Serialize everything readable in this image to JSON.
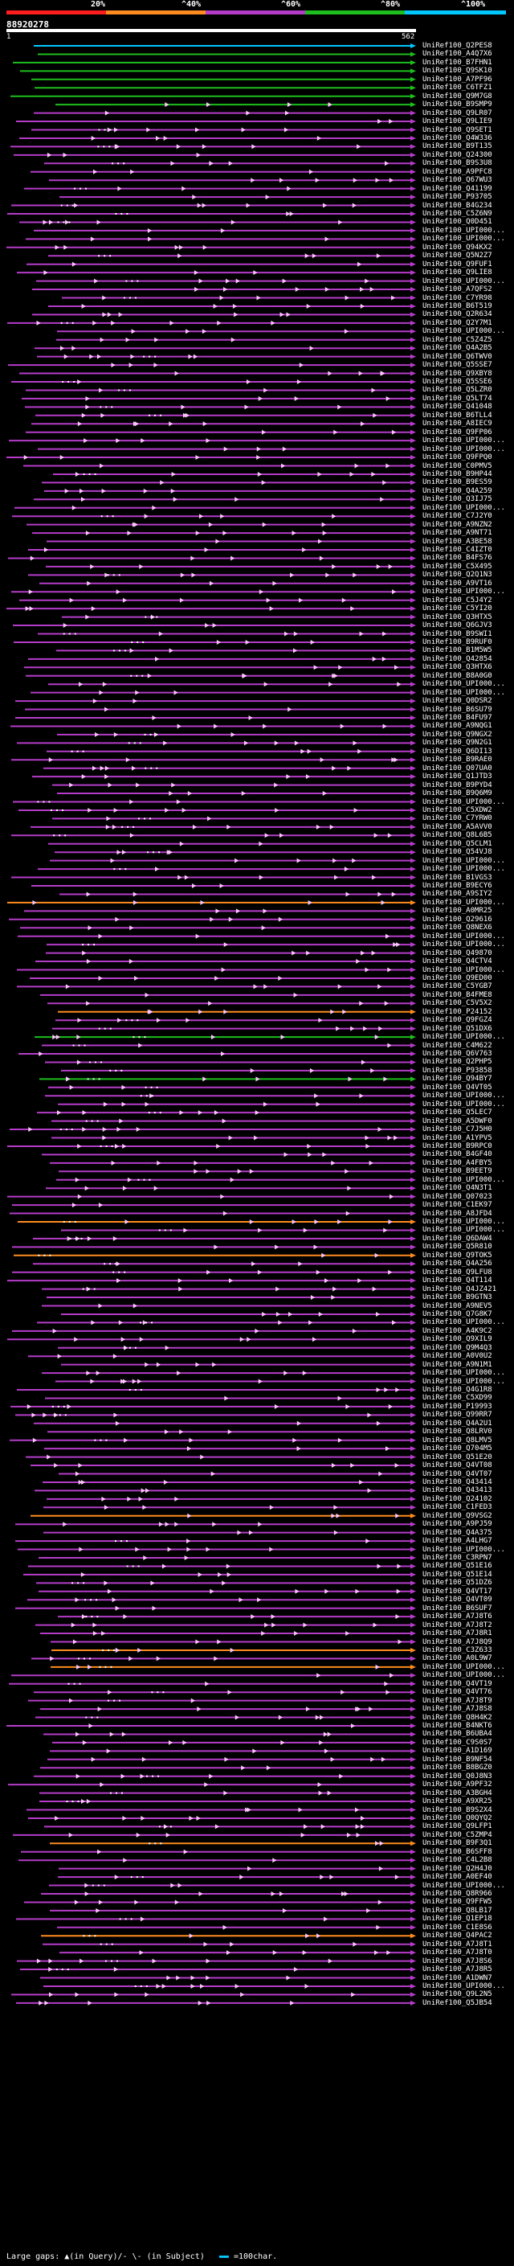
{
  "legend": {
    "labels": [
      "20%",
      "^40%",
      "^60%",
      "^80%",
      "^100%"
    ],
    "colors": [
      "#ff1e1e",
      "#ff8c1e",
      "#b43cc8",
      "#1ebe1e",
      "#00c8ff"
    ]
  },
  "query": {
    "id": "88920278",
    "start": "1",
    "end": "562"
  },
  "hits": [
    {
      "label": "UniRef100_Q2PES8",
      "color": "#00c8ff"
    },
    {
      "label": "UniRef100_A4Q7X6",
      "color": "#1ebe1e"
    },
    {
      "label": "UniRef100_B7FHN1",
      "color": "#1ebe1e"
    },
    {
      "label": "UniRef100_Q9SK10",
      "color": "#1ebe1e"
    },
    {
      "label": "UniRef100_A7PF96",
      "color": "#1ebe1e"
    },
    {
      "label": "UniRef100_C6TFZ1",
      "color": "#1ebe1e"
    },
    {
      "label": "UniRef100_Q9M7G8",
      "color": "#1ebe1e"
    },
    {
      "label": "UniRef100_B9SMP9",
      "color": "#1ebe1e"
    },
    {
      "label": "UniRef100_Q9LR07",
      "color": "#b43cc8"
    },
    {
      "label": "UniRef100_Q9LIE9",
      "color": "#b43cc8"
    },
    {
      "label": "UniRef100_Q9SET1",
      "color": "#b43cc8"
    },
    {
      "label": "UniRef100_Q4W336",
      "color": "#b43cc8"
    },
    {
      "label": "UniRef100_B9T135",
      "color": "#b43cc8"
    },
    {
      "label": "UniRef100_Q24300",
      "color": "#b43cc8"
    },
    {
      "label": "UniRef100_B9S3U8",
      "color": "#b43cc8"
    },
    {
      "label": "UniRef100_A9PFC8",
      "color": "#b43cc8"
    },
    {
      "label": "UniRef100_Q67WU3",
      "color": "#b43cc8"
    },
    {
      "label": "UniRef100_Q41199",
      "color": "#b43cc8"
    },
    {
      "label": "UniRef100_P93705",
      "color": "#b43cc8"
    },
    {
      "label": "UniRef100_B4G234",
      "color": "#b43cc8"
    },
    {
      "label": "UniRef100_C5Z6N9",
      "color": "#b43cc8"
    },
    {
      "label": "UniRef100_Q0D451",
      "color": "#b43cc8"
    },
    {
      "label": "UniRef100_UPI000...",
      "color": "#b43cc8"
    },
    {
      "label": "UniRef100_UPI000...",
      "color": "#b43cc8"
    },
    {
      "label": "UniRef100_Q94KX2",
      "color": "#b43cc8"
    },
    {
      "label": "UniRef100_Q5N2Z7",
      "color": "#b43cc8"
    },
    {
      "label": "UniRef100_Q9FUF1",
      "color": "#b43cc8"
    },
    {
      "label": "UniRef100_Q9LIE8",
      "color": "#b43cc8"
    },
    {
      "label": "UniRef100_UPI000...",
      "color": "#b43cc8"
    },
    {
      "label": "UniRef100_A7QFS2",
      "color": "#b43cc8"
    },
    {
      "label": "UniRef100_C7YR98",
      "color": "#b43cc8"
    },
    {
      "label": "UniRef100_B6T519",
      "color": "#b43cc8"
    },
    {
      "label": "UniRef100_Q2R634",
      "color": "#b43cc8"
    },
    {
      "label": "UniRef100_Q2Y7M1",
      "color": "#b43cc8"
    },
    {
      "label": "UniRef100_UPI000...",
      "color": "#b43cc8"
    },
    {
      "label": "UniRef100_C5Z4Z5",
      "color": "#b43cc8"
    },
    {
      "label": "UniRef100_Q4A2B5",
      "color": "#b43cc8"
    },
    {
      "label": "UniRef100_Q6TWV0",
      "color": "#b43cc8"
    },
    {
      "label": "UniRef100_Q5SSE7",
      "color": "#b43cc8"
    },
    {
      "label": "UniRef100_Q9XBY8",
      "color": "#b43cc8"
    },
    {
      "label": "UniRef100_Q5SSE6",
      "color": "#b43cc8"
    },
    {
      "label": "UniRef100_Q5LZR0",
      "color": "#b43cc8"
    },
    {
      "label": "UniRef100_Q5LT74",
      "color": "#b43cc8"
    },
    {
      "label": "UniRef100_Q41048",
      "color": "#b43cc8"
    },
    {
      "label": "UniRef100_B6TLL4",
      "color": "#b43cc8"
    },
    {
      "label": "UniRef100_A8IEC9",
      "color": "#b43cc8"
    },
    {
      "label": "UniRef100_Q9FP06",
      "color": "#b43cc8"
    },
    {
      "label": "UniRef100_UPI000...",
      "color": "#b43cc8"
    },
    {
      "label": "UniRef100_UPI000...",
      "color": "#b43cc8"
    },
    {
      "label": "UniRef100_Q9FPQ0",
      "color": "#b43cc8"
    },
    {
      "label": "UniRef100_C0PMV5",
      "color": "#b43cc8"
    },
    {
      "label": "UniRef100_B9HP44",
      "color": "#b43cc8"
    },
    {
      "label": "UniRef100_B9ES59",
      "color": "#b43cc8"
    },
    {
      "label": "UniRef100_Q4A259",
      "color": "#b43cc8"
    },
    {
      "label": "UniRef100_Q3IJ75",
      "color": "#b43cc8"
    },
    {
      "label": "UniRef100_UPI000...",
      "color": "#b43cc8"
    },
    {
      "label": "UniRef100_C7J2Y0",
      "color": "#b43cc8"
    },
    {
      "label": "UniRef100_A9NZN2",
      "color": "#b43cc8"
    },
    {
      "label": "UniRef100_A9NT71",
      "color": "#b43cc8"
    },
    {
      "label": "UniRef100_A3BE58",
      "color": "#b43cc8"
    },
    {
      "label": "UniRef100_C4IZT0",
      "color": "#b43cc8"
    },
    {
      "label": "UniRef100_B4FS76",
      "color": "#b43cc8"
    },
    {
      "label": "UniRef100_C5X495",
      "color": "#b43cc8"
    },
    {
      "label": "UniRef100_Q2Q1N3",
      "color": "#b43cc8"
    },
    {
      "label": "UniRef100_A9VT16",
      "color": "#b43cc8"
    },
    {
      "label": "UniRef100_UPI000...",
      "color": "#b43cc8"
    },
    {
      "label": "UniRef100_C5J4Y2",
      "color": "#b43cc8"
    },
    {
      "label": "UniRef100_C5YI20",
      "color": "#b43cc8"
    },
    {
      "label": "UniRef100_Q3HTX5",
      "color": "#b43cc8"
    },
    {
      "label": "UniRef100_Q6GJV3",
      "color": "#b43cc8"
    },
    {
      "label": "UniRef100_B9SWI1",
      "color": "#b43cc8"
    },
    {
      "label": "UniRef100_B9RUF0",
      "color": "#b43cc8"
    },
    {
      "label": "UniRef100_B1M5W5",
      "color": "#b43cc8"
    },
    {
      "label": "UniRef100_Q42854",
      "color": "#b43cc8"
    },
    {
      "label": "UniRef100_Q3HTX6",
      "color": "#b43cc8"
    },
    {
      "label": "UniRef100_B8A0G0",
      "color": "#b43cc8"
    },
    {
      "label": "UniRef100_UPI000...",
      "color": "#b43cc8"
    },
    {
      "label": "UniRef100_UPI000...",
      "color": "#b43cc8"
    },
    {
      "label": "UniRef100_Q0DSR2",
      "color": "#b43cc8"
    },
    {
      "label": "UniRef100_B6SU79",
      "color": "#b43cc8"
    },
    {
      "label": "UniRef100_B4FU97",
      "color": "#b43cc8"
    },
    {
      "label": "UniRef100_A9NQG1",
      "color": "#b43cc8"
    },
    {
      "label": "UniRef100_Q9NGX2",
      "color": "#b43cc8"
    },
    {
      "label": "UniRef100_Q9N2G1",
      "color": "#b43cc8"
    },
    {
      "label": "UniRef100_Q6DI13",
      "color": "#b43cc8"
    },
    {
      "label": "UniRef100_B9RAE0",
      "color": "#b43cc8"
    },
    {
      "label": "UniRef100_Q07UA0",
      "color": "#b43cc8"
    },
    {
      "label": "UniRef100_Q1JTD3",
      "color": "#b43cc8"
    },
    {
      "label": "UniRef100_B9PYD4",
      "color": "#b43cc8"
    },
    {
      "label": "UniRef100_B9Q6M9",
      "color": "#b43cc8"
    },
    {
      "label": "UniRef100_UPI000...",
      "color": "#b43cc8"
    },
    {
      "label": "UniRef100_C5XDW2",
      "color": "#b43cc8"
    },
    {
      "label": "UniRef100_C7YRW0",
      "color": "#b43cc8"
    },
    {
      "label": "UniRef100_A5AVV0",
      "color": "#b43cc8"
    },
    {
      "label": "UniRef100_Q8L6B5",
      "color": "#b43cc8"
    },
    {
      "label": "UniRef100_Q5CLM1",
      "color": "#b43cc8"
    },
    {
      "label": "UniRef100_Q54VJ8",
      "color": "#b43cc8"
    },
    {
      "label": "UniRef100_UPI000...",
      "color": "#b43cc8"
    },
    {
      "label": "UniRef100_UPI000...",
      "color": "#b43cc8"
    },
    {
      "label": "UniRef100_B1VGS3",
      "color": "#b43cc8"
    },
    {
      "label": "UniRef100_B9ECY6",
      "color": "#b43cc8"
    },
    {
      "label": "UniRef100_A9SIY2",
      "color": "#b43cc8"
    },
    {
      "label": "UniRef100_UPI000...",
      "color": "#ff8c1e"
    },
    {
      "label": "UniRef100_A0MR25",
      "color": "#b43cc8"
    },
    {
      "label": "UniRef100_Q29616",
      "color": "#b43cc8"
    },
    {
      "label": "UniRef100_Q8NEX6",
      "color": "#b43cc8"
    },
    {
      "label": "UniRef100_UPI000...",
      "color": "#b43cc8"
    },
    {
      "label": "UniRef100_UPI000...",
      "color": "#b43cc8"
    },
    {
      "label": "UniRef100_Q49870",
      "color": "#b43cc8"
    },
    {
      "label": "UniRef100_Q4CTV4",
      "color": "#b43cc8"
    },
    {
      "label": "UniRef100_UPI000...",
      "color": "#b43cc8"
    },
    {
      "label": "UniRef100_Q9ED00",
      "color": "#b43cc8"
    },
    {
      "label": "UniRef100_C5YGB7",
      "color": "#b43cc8"
    },
    {
      "label": "UniRef100_B4FME8",
      "color": "#b43cc8"
    },
    {
      "label": "UniRef100_C5V5X2",
      "color": "#b43cc8"
    },
    {
      "label": "UniRef100_P24152",
      "color": "#ff8c1e"
    },
    {
      "label": "UniRef100_Q9FGZ4",
      "color": "#b43cc8"
    },
    {
      "label": "UniRef100_Q51DX6",
      "color": "#b43cc8"
    },
    {
      "label": "UniRef100_UPI000...",
      "color": "#1ebe1e"
    },
    {
      "label": "UniRef100_C4M622",
      "color": "#b43cc8"
    },
    {
      "label": "UniRef100_Q6V763",
      "color": "#b43cc8"
    },
    {
      "label": "UniRef100_Q2PHP5",
      "color": "#b43cc8"
    },
    {
      "label": "UniRef100_P93858",
      "color": "#b43cc8"
    },
    {
      "label": "UniRef100_Q94BY7",
      "color": "#1ebe1e"
    },
    {
      "label": "UniRef100_Q4VT05",
      "color": "#b43cc8"
    },
    {
      "label": "UniRef100_UPI000...",
      "color": "#b43cc8"
    },
    {
      "label": "UniRef100_UPI000...",
      "color": "#b43cc8"
    },
    {
      "label": "UniRef100_Q5LEC7",
      "color": "#b43cc8"
    },
    {
      "label": "UniRef100_A5DWF0",
      "color": "#b43cc8"
    },
    {
      "label": "UniRef100_C7J5H0",
      "color": "#b43cc8"
    },
    {
      "label": "UniRef100_A1YPV5",
      "color": "#b43cc8"
    },
    {
      "label": "UniRef100_B9RPC0",
      "color": "#b43cc8"
    },
    {
      "label": "UniRef100_B4GF40",
      "color": "#b43cc8"
    },
    {
      "label": "UniRef100_A4FBY5",
      "color": "#b43cc8"
    },
    {
      "label": "UniRef100_B9EET9",
      "color": "#b43cc8"
    },
    {
      "label": "UniRef100_UPI000...",
      "color": "#b43cc8"
    },
    {
      "label": "UniRef100_Q4N3T1",
      "color": "#b43cc8"
    },
    {
      "label": "UniRef100_Q07023",
      "color": "#b43cc8"
    },
    {
      "label": "UniRef100_C1EK97",
      "color": "#b43cc8"
    },
    {
      "label": "UniRef100_A8JFD4",
      "color": "#b43cc8"
    },
    {
      "label": "UniRef100_UPI000...",
      "color": "#ff8c1e"
    },
    {
      "label": "UniRef100_UPI000...",
      "color": "#b43cc8"
    },
    {
      "label": "UniRef100_Q6DAW4",
      "color": "#b43cc8"
    },
    {
      "label": "UniRef100_Q5R810",
      "color": "#b43cc8"
    },
    {
      "label": "UniRef100_Q9TOK5",
      "color": "#ff8c1e"
    },
    {
      "label": "UniRef100_Q4A256",
      "color": "#b43cc8"
    },
    {
      "label": "UniRef100_Q9LFU8",
      "color": "#b43cc8"
    },
    {
      "label": "UniRef100_Q4T114",
      "color": "#b43cc8"
    },
    {
      "label": "UniRef100_Q4JZ421",
      "color": "#b43cc8"
    },
    {
      "label": "UniRef100_B9GTN3",
      "color": "#b43cc8"
    },
    {
      "label": "UniRef100_A9NEV5",
      "color": "#b43cc8"
    },
    {
      "label": "UniRef100_Q7G8K7",
      "color": "#b43cc8"
    },
    {
      "label": "UniRef100_UPI000...",
      "color": "#b43cc8"
    },
    {
      "label": "UniRef100_A4K9C2",
      "color": "#b43cc8"
    },
    {
      "label": "UniRef100_Q9XIL9",
      "color": "#b43cc8"
    },
    {
      "label": "UniRef100_Q9M4Q3",
      "color": "#b43cc8"
    },
    {
      "label": "UniRef100_A0V0U2",
      "color": "#b43cc8"
    },
    {
      "label": "UniRef100_A9N1M1",
      "color": "#b43cc8"
    },
    {
      "label": "UniRef100_UPI000...",
      "color": "#b43cc8"
    },
    {
      "label": "UniRef100_UPI000...",
      "color": "#b43cc8"
    },
    {
      "label": "UniRef100_Q4G1R8",
      "color": "#b43cc8"
    },
    {
      "label": "UniRef100_C5XD99",
      "color": "#b43cc8"
    },
    {
      "label": "UniRef100_P19993",
      "color": "#b43cc8"
    },
    {
      "label": "UniRef100_Q99RR7",
      "color": "#b43cc8"
    },
    {
      "label": "UniRef100_Q4A2U1",
      "color": "#b43cc8"
    },
    {
      "label": "UniRef100_Q8LRV0",
      "color": "#b43cc8"
    },
    {
      "label": "UniRef100_Q8LMV5",
      "color": "#b43cc8"
    },
    {
      "label": "UniRef100_Q704M5",
      "color": "#b43cc8"
    },
    {
      "label": "UniRef100_Q51E20",
      "color": "#b43cc8"
    },
    {
      "label": "UniRef100_Q4VT08",
      "color": "#b43cc8"
    },
    {
      "label": "UniRef100_Q4VT07",
      "color": "#b43cc8"
    },
    {
      "label": "UniRef100_Q43414",
      "color": "#b43cc8"
    },
    {
      "label": "UniRef100_Q43413",
      "color": "#b43cc8"
    },
    {
      "label": "UniRef100_Q24102",
      "color": "#b43cc8"
    },
    {
      "label": "UniRef100_C1FED3",
      "color": "#b43cc8"
    },
    {
      "label": "UniRef100_Q9VSG2",
      "color": "#ff8c1e"
    },
    {
      "label": "UniRef100_A9PJ59",
      "color": "#b43cc8"
    },
    {
      "label": "UniRef100_Q4A375",
      "color": "#b43cc8"
    },
    {
      "label": "UniRef100_A4LHG7",
      "color": "#b43cc8"
    },
    {
      "label": "UniRef100_UPI000...",
      "color": "#b43cc8"
    },
    {
      "label": "UniRef100_C3RPN7",
      "color": "#b43cc8"
    },
    {
      "label": "UniRef100_Q51E16",
      "color": "#b43cc8"
    },
    {
      "label": "UniRef100_Q51E14",
      "color": "#b43cc8"
    },
    {
      "label": "UniRef100_Q51DZ6",
      "color": "#b43cc8"
    },
    {
      "label": "UniRef100_Q4VT17",
      "color": "#b43cc8"
    },
    {
      "label": "UniRef100_Q4VT09",
      "color": "#b43cc8"
    },
    {
      "label": "UniRef100_B6SUF7",
      "color": "#b43cc8"
    },
    {
      "label": "UniRef100_A7J8T6",
      "color": "#b43cc8"
    },
    {
      "label": "UniRef100_A7J8T2",
      "color": "#b43cc8"
    },
    {
      "label": "UniRef100_A7J8R1",
      "color": "#b43cc8"
    },
    {
      "label": "UniRef100_A7J8Q9",
      "color": "#b43cc8"
    },
    {
      "label": "UniRef100_C3Z633",
      "color": "#ff8c1e"
    },
    {
      "label": "UniRef100_A0L9W7",
      "color": "#b43cc8"
    },
    {
      "label": "UniRef100_UPI000...",
      "color": "#ff8c1e"
    },
    {
      "label": "UniRef100_UPI000...",
      "color": "#b43cc8"
    },
    {
      "label": "UniRef100_Q4VT19",
      "color": "#b43cc8"
    },
    {
      "label": "UniRef100_Q4VT76",
      "color": "#b43cc8"
    },
    {
      "label": "UniRef100_A7J8T9",
      "color": "#b43cc8"
    },
    {
      "label": "UniRef100_A7J8S8",
      "color": "#b43cc8"
    },
    {
      "label": "UniRef100_Q8H4K2",
      "color": "#b43cc8"
    },
    {
      "label": "UniRef100_B4NKT6",
      "color": "#b43cc8"
    },
    {
      "label": "UniRef100_B6UBA4",
      "color": "#b43cc8"
    },
    {
      "label": "UniRef100_C9S0S7",
      "color": "#b43cc8"
    },
    {
      "label": "UniRef100_A1D169",
      "color": "#b43cc8"
    },
    {
      "label": "UniRef100_B9NF54",
      "color": "#b43cc8"
    },
    {
      "label": "UniRef100_B8BGZ0",
      "color": "#b43cc8"
    },
    {
      "label": "UniRef100_Q0J8N3",
      "color": "#b43cc8"
    },
    {
      "label": "UniRef100_A9PF32",
      "color": "#b43cc8"
    },
    {
      "label": "UniRef100_A3BGH4",
      "color": "#b43cc8"
    },
    {
      "label": "UniRef100_A9XR25",
      "color": "#b43cc8"
    },
    {
      "label": "UniRef100_B9S2X4",
      "color": "#b43cc8"
    },
    {
      "label": "UniRef100_Q0QYQ2",
      "color": "#b43cc8"
    },
    {
      "label": "UniRef100_Q9LFP1",
      "color": "#b43cc8"
    },
    {
      "label": "UniRef100_C5ZMP4",
      "color": "#b43cc8"
    },
    {
      "label": "UniRef100_B9F3Q1",
      "color": "#ff8c1e"
    },
    {
      "label": "UniRef100_B6SFF8",
      "color": "#b43cc8"
    },
    {
      "label": "UniRef100_C4L2B8",
      "color": "#b43cc8"
    },
    {
      "label": "UniRef100_Q2H4J0",
      "color": "#b43cc8"
    },
    {
      "label": "UniRef100_A0EF40",
      "color": "#b43cc8"
    },
    {
      "label": "UniRef100_UPI000...",
      "color": "#b43cc8"
    },
    {
      "label": "UniRef100_Q8R966",
      "color": "#b43cc8"
    },
    {
      "label": "UniRef100_Q9FFW5",
      "color": "#b43cc8"
    },
    {
      "label": "UniRef100_Q8LB17",
      "color": "#b43cc8"
    },
    {
      "label": "UniRef100_Q1EP18",
      "color": "#b43cc8"
    },
    {
      "label": "UniRef100_C1E8S6",
      "color": "#b43cc8"
    },
    {
      "label": "UniRef100_Q4PAC2",
      "color": "#ff8c1e"
    },
    {
      "label": "UniRef100_A7J8T1",
      "color": "#b43cc8"
    },
    {
      "label": "UniRef100_A7J8T0",
      "color": "#b43cc8"
    },
    {
      "label": "UniRef100_A7J8S6",
      "color": "#b43cc8"
    },
    {
      "label": "UniRef100_A7J8R5",
      "color": "#b43cc8"
    },
    {
      "label": "UniRef100_A1DWN7",
      "color": "#b43cc8"
    },
    {
      "label": "UniRef100_UPI000...",
      "color": "#b43cc8"
    },
    {
      "label": "UniRef100_Q9L2N5",
      "color": "#b43cc8"
    },
    {
      "label": "UniRef100_Q5JB54",
      "color": "#b43cc8"
    }
  ],
  "footer": {
    "text": "Large gaps: ▲(in Query)/- \\- (in Subject)",
    "scale_text": "=100char."
  }
}
